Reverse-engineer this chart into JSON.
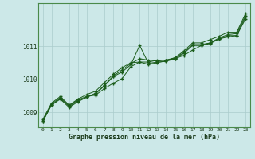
{
  "title": "Graphe pression niveau de la mer (hPa)",
  "bg_color": "#cce8e8",
  "grid_color": "#aacccc",
  "line_color": "#1a5c1a",
  "marker_color": "#1a5c1a",
  "xlim": [
    -0.5,
    23.5
  ],
  "ylim": [
    1008.55,
    1012.3
  ],
  "yticks": [
    1009,
    1010,
    1011
  ],
  "xticks": [
    0,
    1,
    2,
    3,
    4,
    5,
    6,
    7,
    8,
    9,
    10,
    11,
    12,
    13,
    14,
    15,
    16,
    17,
    18,
    19,
    20,
    21,
    22,
    23
  ],
  "series": [
    [
      1008.75,
      1009.25,
      1009.45,
      1009.2,
      1009.38,
      1009.48,
      1009.52,
      1009.72,
      1009.88,
      1010.02,
      1010.38,
      1010.52,
      1010.52,
      1010.58,
      1010.58,
      1010.62,
      1010.72,
      1010.88,
      1011.02,
      1011.1,
      1011.22,
      1011.28,
      1011.32,
      1011.82
    ],
    [
      1008.72,
      1009.22,
      1009.42,
      1009.18,
      1009.35,
      1009.46,
      1009.56,
      1009.8,
      1010.08,
      1010.22,
      1010.44,
      1011.02,
      1010.48,
      1010.52,
      1010.54,
      1010.62,
      1010.78,
      1011.02,
      1011.02,
      1011.08,
      1011.22,
      1011.32,
      1011.32,
      1011.88
    ],
    [
      1008.72,
      1009.22,
      1009.4,
      1009.15,
      1009.32,
      1009.46,
      1009.58,
      1009.82,
      1010.1,
      1010.28,
      1010.48,
      1010.62,
      1010.58,
      1010.55,
      1010.58,
      1010.65,
      1010.8,
      1011.05,
      1011.05,
      1011.1,
      1011.25,
      1011.35,
      1011.38,
      1011.92
    ],
    [
      1008.78,
      1009.28,
      1009.48,
      1009.22,
      1009.4,
      1009.54,
      1009.64,
      1009.9,
      1010.15,
      1010.35,
      1010.5,
      1010.52,
      1010.45,
      1010.5,
      1010.56,
      1010.65,
      1010.85,
      1011.1,
      1011.1,
      1011.2,
      1011.3,
      1011.42,
      1011.42,
      1011.98
    ]
  ]
}
